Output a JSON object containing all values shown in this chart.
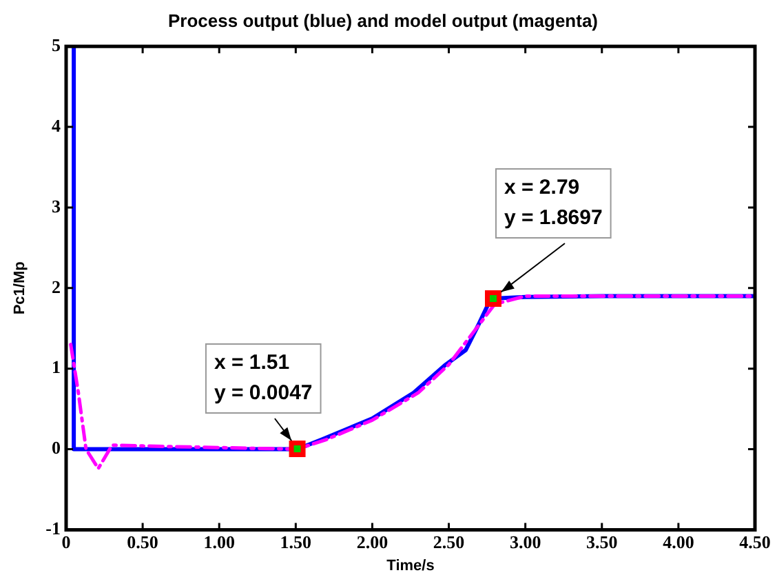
{
  "chart_data": {
    "type": "line",
    "title": "Process output (blue) and model output (magenta)",
    "xlabel": "Time/s",
    "ylabel": "Pc1/Mp",
    "xlim": [
      0,
      4.5
    ],
    "xticks": [
      0,
      {
        "value": 0.5,
        "label": "0.50"
      },
      {
        "value": 1,
        "label": "1.00"
      },
      {
        "value": 1.5,
        "label": "1.50"
      },
      {
        "value": 2,
        "label": "2.00"
      },
      {
        "value": 2.5,
        "label": "2.50"
      },
      {
        "value": 3,
        "label": "3.00"
      },
      {
        "value": 3.5,
        "label": "3.50"
      },
      {
        "value": 4,
        "label": "4.00"
      },
      {
        "value": 4.5,
        "label": "4.50"
      }
    ],
    "ylim": [
      -1,
      5
    ],
    "yticks": [
      -1,
      0,
      1,
      2,
      3,
      4,
      5
    ],
    "grid": false,
    "legend": false,
    "marker": "none",
    "series": [
      {
        "color": "#0000ff",
        "line_style": "solid",
        "x": [
          0.05,
          0.05,
          0.5,
          1.0,
          1.51,
          1.67,
          2.0,
          2.27,
          2.48,
          2.61,
          2.69,
          2.76,
          2.79,
          3.0,
          3.5,
          4.0,
          4.5
        ],
        "values": [
          5,
          0,
          0,
          0,
          0,
          0.12,
          0.38,
          0.7,
          1.05,
          1.23,
          1.53,
          1.81,
          1.87,
          1.89,
          1.9,
          1.9,
          1.9
        ]
      },
      {
        "color": "#ff00ff",
        "line_style": "dashed",
        "x": [
          0.03,
          0.08,
          0.13,
          0.21,
          0.3,
          0.5,
          1.0,
          1.51,
          1.7,
          2.0,
          2.3,
          2.5,
          2.7,
          2.8,
          3.0,
          3.5,
          4.0,
          4.5
        ],
        "values": [
          1.3,
          0.7,
          0.0,
          -0.24,
          0.05,
          0.04,
          0.02,
          0.0,
          0.12,
          0.36,
          0.7,
          1.05,
          1.55,
          1.8,
          1.9,
          1.9,
          1.9,
          1.9
        ]
      }
    ],
    "annotations": [
      {
        "text": "x = 1.51\ny = 0.0047",
        "x": 1.51,
        "y": 0.0047
      },
      {
        "text": "x = 2.79\ny = 1.8697",
        "x": 2.79,
        "y": 1.8697
      }
    ]
  }
}
